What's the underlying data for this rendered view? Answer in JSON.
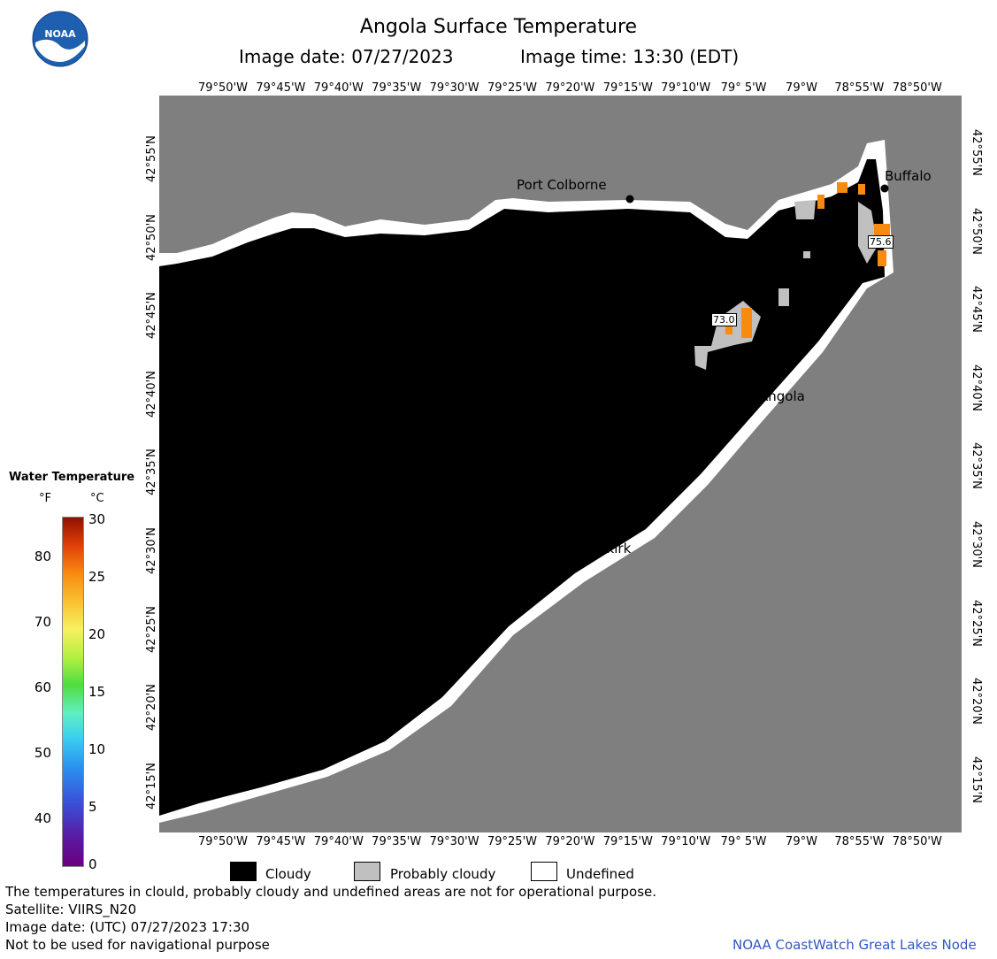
{
  "header": {
    "title": "Angola Surface Temperature",
    "image_date": "Image date: 07/27/2023",
    "image_time": "Image time: 13:30 (EDT)"
  },
  "logo": {
    "text": "NOAA",
    "icon": "noaa-logo-icon"
  },
  "axes": {
    "lon_labels": [
      "79°50'W",
      "79°45'W",
      "79°40'W",
      "79°35'W",
      "79°30'W",
      "79°25'W",
      "79°20'W",
      "79°15'W",
      "79°10'W",
      "79° 5'W",
      "79°W",
      "78°55'W",
      "78°50'W"
    ],
    "lat_labels": [
      "42°55'N",
      "42°50'N",
      "42°45'N",
      "42°40'N",
      "42°35'N",
      "42°30'N",
      "42°25'N",
      "42°20'N",
      "42°15'N"
    ]
  },
  "map": {
    "cities": [
      "Port Colborne",
      "Buffalo",
      "Angola",
      "Dunkirk"
    ],
    "temperature_labels": [
      "73.0",
      "75.6"
    ],
    "colors": {
      "cloudy": "#000000",
      "probably_cloudy": "#c0c0c0",
      "undefined": "#ffffff",
      "land": "#7f7f7f",
      "warm_water": "#f88a10"
    }
  },
  "colorbar": {
    "title": "Water Temperature",
    "unit_f": "°F",
    "unit_c": "°C",
    "f_ticks": [
      "80",
      "70",
      "60",
      "50",
      "40"
    ],
    "c_ticks": [
      "30",
      "25",
      "20",
      "15",
      "10",
      "5",
      "0"
    ]
  },
  "legend": {
    "cloudy": "Cloudy",
    "probably_cloudy": "Probably cloudy",
    "undefined": "Undefined"
  },
  "footer": {
    "disclaimer": "The temperatures in clould, probably cloudy and undefined areas are not for operational purpose.",
    "satellite": "Satellite: VIIRS_N20",
    "image_date_utc": "Image date: (UTC) 07/27/2023  17:30",
    "nav_warning": "Not to be used for navigational purpose",
    "credit": "NOAA CoastWatch Great Lakes Node"
  }
}
